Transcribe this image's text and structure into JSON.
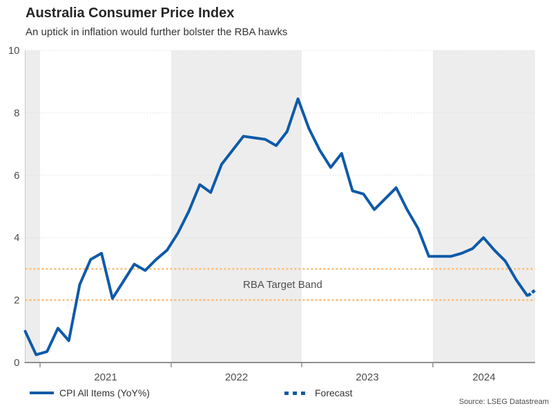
{
  "header": {
    "title": "Australia Consumer Price Index",
    "subtitle": "An uptick in inflation would further bolster the RBA hawks"
  },
  "legend": [
    {
      "label": "CPI All Items (YoY%)",
      "style": "solid"
    },
    {
      "label": "Forecast",
      "style": "dotted"
    }
  ],
  "annotations": {
    "target_band_label": "RBA Target Band"
  },
  "source": "Source: LSEG Datastream",
  "colors": {
    "line": "#0E5AA8",
    "target_band": "#FBBE74",
    "band_shading": "#EDEDED",
    "grid": "#DADADA",
    "axis": "#8F8F8F",
    "y_axis": "#C8C8C8",
    "tick_text": "#4D4D4D",
    "title_text": "#262626"
  },
  "chart_data": {
    "type": "line",
    "title": "Australia Consumer Price Index",
    "subtitle": "An uptick in inflation would further bolster the RBA hawks",
    "ylim": [
      0,
      10
    ],
    "y_ticks": [
      0,
      2,
      4,
      6,
      8,
      10
    ],
    "x_tick_labels": [
      "2021",
      "2022",
      "2023",
      "2024"
    ],
    "grid": "horizontal-dotted",
    "legend_position": "bottom",
    "year_shading": "alternate gray bands per calendar year (2020 partial, 2022, 2024 shaded)",
    "target_band": {
      "low": 2,
      "high": 3,
      "label": "RBA Target Band"
    },
    "series": [
      {
        "name": "CPI All Items (YoY%)",
        "style": "solid",
        "x": [
          "2020-11",
          "2020-12",
          "2021-01",
          "2021-02",
          "2021-03",
          "2021-04",
          "2021-05",
          "2021-06",
          "2021-07",
          "2021-08",
          "2021-09",
          "2021-10",
          "2021-11",
          "2021-12",
          "2022-01",
          "2022-02",
          "2022-03",
          "2022-04",
          "2022-05",
          "2022-06",
          "2022-07",
          "2022-08",
          "2022-09",
          "2022-10",
          "2022-11",
          "2022-12",
          "2023-01",
          "2023-02",
          "2023-03",
          "2023-04",
          "2023-05",
          "2023-06",
          "2023-07",
          "2023-08",
          "2023-09",
          "2023-10",
          "2023-11",
          "2023-12",
          "2024-01",
          "2024-02",
          "2024-03",
          "2024-04",
          "2024-05",
          "2024-06",
          "2024-07",
          "2024-08",
          "2024-09"
        ],
        "values": [
          1.0,
          0.25,
          0.35,
          1.1,
          0.7,
          2.5,
          3.3,
          3.5,
          2.05,
          2.6,
          3.15,
          2.95,
          3.3,
          3.6,
          4.15,
          4.85,
          5.7,
          5.45,
          6.35,
          6.8,
          7.25,
          7.2,
          7.15,
          6.95,
          7.4,
          8.45,
          7.5,
          6.8,
          6.25,
          6.7,
          5.5,
          5.4,
          4.9,
          5.25,
          5.6,
          4.9,
          4.3,
          3.4,
          3.4,
          3.4,
          3.5,
          3.65,
          4.0,
          3.6,
          3.25,
          2.65,
          2.15
        ]
      },
      {
        "name": "Forecast",
        "style": "dotted",
        "x": [
          "2024-09",
          "2024-10"
        ],
        "values": [
          2.15,
          2.3
        ]
      }
    ]
  }
}
